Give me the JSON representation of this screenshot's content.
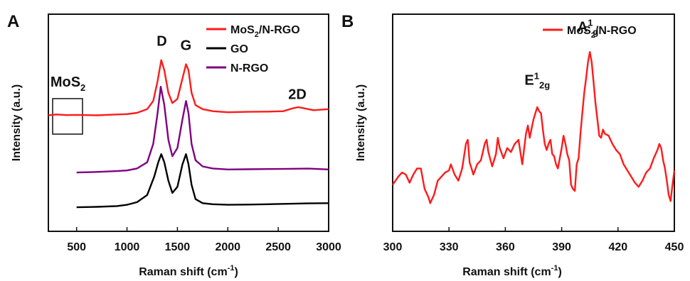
{
  "chart_data": [
    {
      "panel_label": "A",
      "type": "line",
      "xlabel": "Raman shift (cm",
      "xlabel_sup": "-1",
      "xlabel_end": ")",
      "ylabel": "Intensity (a.u.)",
      "xlim": [
        220,
        3000
      ],
      "ylim": [
        0,
        100
      ],
      "x_ticks": [
        500,
        1000,
        1500,
        2000,
        2500,
        3000
      ],
      "grid": false,
      "legend_position": "top-right",
      "series": [
        {
          "name": "MoS",
          "name_sub": "2",
          "name_rest": "/N-RGO",
          "color": "#ff1a1a",
          "points": [
            [
              220,
              54
            ],
            [
              300,
              54.4
            ],
            [
              400,
              54.1
            ],
            [
              500,
              54.2
            ],
            [
              600,
              54.1
            ],
            [
              700,
              54
            ],
            [
              800,
              54.2
            ],
            [
              900,
              54.4
            ],
            [
              1000,
              54.6
            ],
            [
              1100,
              55.2
            ],
            [
              1200,
              57
            ],
            [
              1260,
              61
            ],
            [
              1300,
              70
            ],
            [
              1340,
              81
            ],
            [
              1370,
              76
            ],
            [
              1410,
              65
            ],
            [
              1450,
              60
            ],
            [
              1500,
              62
            ],
            [
              1550,
              72
            ],
            [
              1585,
              79
            ],
            [
              1610,
              76
            ],
            [
              1640,
              65
            ],
            [
              1680,
              59
            ],
            [
              1750,
              57
            ],
            [
              1850,
              56
            ],
            [
              2000,
              55.5
            ],
            [
              2200,
              55.7
            ],
            [
              2400,
              55.8
            ],
            [
              2550,
              56
            ],
            [
              2650,
              57.5
            ],
            [
              2700,
              58
            ],
            [
              2750,
              57.5
            ],
            [
              2850,
              56.5
            ],
            [
              3000,
              57
            ]
          ]
        },
        {
          "name": "GO",
          "color": "#000000",
          "points": [
            [
              500,
              9
            ],
            [
              700,
              9.2
            ],
            [
              900,
              9.6
            ],
            [
              1000,
              10.2
            ],
            [
              1100,
              11.5
            ],
            [
              1200,
              15
            ],
            [
              1270,
              24
            ],
            [
              1310,
              31
            ],
            [
              1340,
              35
            ],
            [
              1370,
              31
            ],
            [
              1410,
              22
            ],
            [
              1450,
              16
            ],
            [
              1500,
              19
            ],
            [
              1550,
              30
            ],
            [
              1585,
              35
            ],
            [
              1610,
              30
            ],
            [
              1640,
              20
            ],
            [
              1680,
              13
            ],
            [
              1750,
              11
            ],
            [
              1850,
              10.5
            ],
            [
              2000,
              10.2
            ],
            [
              2200,
              10.3
            ],
            [
              2400,
              10.5
            ],
            [
              2600,
              10.7
            ],
            [
              2800,
              10.9
            ],
            [
              3000,
              11
            ]
          ]
        },
        {
          "name": "N-RGO",
          "color": "#800080",
          "points": [
            [
              500,
              26
            ],
            [
              700,
              26.3
            ],
            [
              900,
              26.7
            ],
            [
              1000,
              27
            ],
            [
              1100,
              28
            ],
            [
              1200,
              31
            ],
            [
              1260,
              40
            ],
            [
              1300,
              54
            ],
            [
              1335,
              68
            ],
            [
              1370,
              59
            ],
            [
              1410,
              42
            ],
            [
              1450,
              34
            ],
            [
              1500,
              38
            ],
            [
              1550,
              52
            ],
            [
              1585,
              61
            ],
            [
              1610,
              55
            ],
            [
              1640,
              40
            ],
            [
              1680,
              32
            ],
            [
              1750,
              29
            ],
            [
              1850,
              28
            ],
            [
              2000,
              27.5
            ],
            [
              2200,
              27.6
            ],
            [
              2400,
              27.7
            ],
            [
              2600,
              27.8
            ],
            [
              2800,
              27.9
            ],
            [
              3000,
              27.5
            ]
          ]
        }
      ],
      "annotations": [
        {
          "text": "D",
          "x": 1345,
          "y": 88
        },
        {
          "text": "G",
          "x": 1585,
          "y": 86
        },
        {
          "text": "2D",
          "x": 2690,
          "y": 62
        },
        {
          "text": "MoS",
          "sub": "2",
          "x": 240,
          "y": 68
        }
      ]
    },
    {
      "panel_label": "B",
      "type": "line",
      "xlabel": "Raman shift (cm",
      "xlabel_sup": "-1",
      "xlabel_end": ")",
      "ylabel": "Intensity (a.u.)",
      "xlim": [
        300,
        450
      ],
      "ylim": [
        0,
        100
      ],
      "x_ticks": [
        300,
        330,
        360,
        390,
        420,
        450
      ],
      "grid": false,
      "legend_position": "top-right",
      "series": [
        {
          "name": "MoS",
          "name_sub": "2",
          "name_rest": "/N-RGO",
          "color": "#ff1a1a",
          "points": [
            [
              300,
              20
            ],
            [
              303,
              24
            ],
            [
              305,
              26
            ],
            [
              307,
              25
            ],
            [
              309,
              21
            ],
            [
              311,
              25
            ],
            [
              313,
              28
            ],
            [
              315,
              28
            ],
            [
              317,
              18
            ],
            [
              319,
              14
            ],
            [
              320,
              11
            ],
            [
              322,
              15
            ],
            [
              324,
              22
            ],
            [
              326,
              24
            ],
            [
              328,
              26
            ],
            [
              330,
              27
            ],
            [
              331,
              30
            ],
            [
              333,
              25
            ],
            [
              335,
              22
            ],
            [
              337,
              28
            ],
            [
              339,
              40
            ],
            [
              340,
              42
            ],
            [
              341,
              31
            ],
            [
              343,
              25
            ],
            [
              345,
              30
            ],
            [
              347,
              32
            ],
            [
              349,
              40
            ],
            [
              350,
              42
            ],
            [
              351,
              36
            ],
            [
              353,
              29
            ],
            [
              355,
              35
            ],
            [
              356,
              43
            ],
            [
              357,
              38
            ],
            [
              359,
              33
            ],
            [
              361,
              38
            ],
            [
              363,
              36
            ],
            [
              365,
              40
            ],
            [
              367,
              42
            ],
            [
              369,
              30
            ],
            [
              371,
              45
            ],
            [
              372,
              49
            ],
            [
              373,
              43
            ],
            [
              375,
              52
            ],
            [
              376,
              55
            ],
            [
              377,
              58
            ],
            [
              378,
              56
            ],
            [
              379,
              55
            ],
            [
              380,
              47
            ],
            [
              381,
              40
            ],
            [
              382,
              37
            ],
            [
              383,
              40
            ],
            [
              384,
              42
            ],
            [
              385,
              35
            ],
            [
              386,
              34
            ],
            [
              387,
              30
            ],
            [
              388,
              28
            ],
            [
              390,
              38
            ],
            [
              391,
              44
            ],
            [
              392,
              40
            ],
            [
              393,
              35
            ],
            [
              394,
              32
            ],
            [
              395,
              20
            ],
            [
              396,
              18
            ],
            [
              397,
              17
            ],
            [
              398,
              30
            ],
            [
              399,
              33
            ],
            [
              400,
              45
            ],
            [
              401,
              55
            ],
            [
              402,
              65
            ],
            [
              403,
              72
            ],
            [
              404,
              80
            ],
            [
              405,
              85
            ],
            [
              406,
              80
            ],
            [
              407,
              70
            ],
            [
              408,
              60
            ],
            [
              409,
              52
            ],
            [
              410,
              44
            ],
            [
              411,
              43
            ],
            [
              412,
              47
            ],
            [
              413,
              45
            ],
            [
              415,
              44
            ],
            [
              417,
              40
            ],
            [
              419,
              37
            ],
            [
              421,
              35
            ],
            [
              423,
              30
            ],
            [
              425,
              27
            ],
            [
              427,
              24
            ],
            [
              429,
              21
            ],
            [
              431,
              19
            ],
            [
              433,
              22
            ],
            [
              435,
              26
            ],
            [
              437,
              28
            ],
            [
              439,
              33
            ],
            [
              441,
              37
            ],
            [
              442,
              40
            ],
            [
              443,
              38
            ],
            [
              444,
              32
            ],
            [
              445,
              28
            ],
            [
              446,
              22
            ],
            [
              447,
              15
            ],
            [
              448,
              12
            ],
            [
              449,
              20
            ],
            [
              450,
              27
            ]
          ]
        }
      ],
      "annotations": [
        {
          "text": "E",
          "sup": "1",
          "sub": "2g",
          "x": 377,
          "y": 69
        },
        {
          "text": "A",
          "sup": "1",
          "sub": "g",
          "x": 404,
          "y": 95
        }
      ]
    }
  ]
}
